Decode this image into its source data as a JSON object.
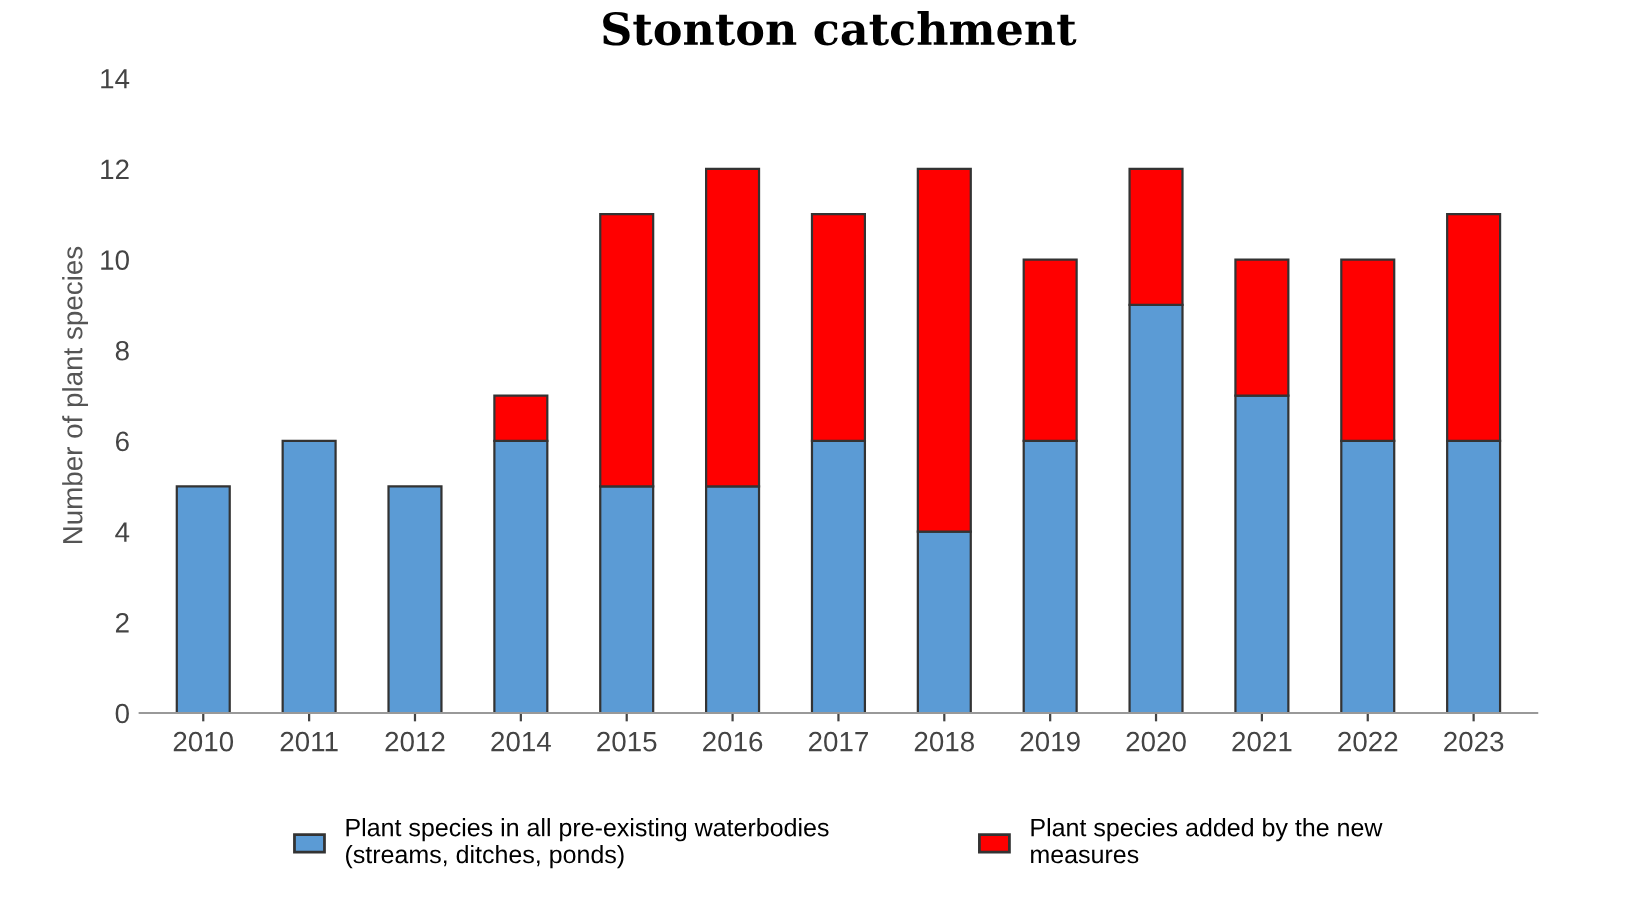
{
  "chart_data": {
    "type": "bar",
    "title": "Stonton catchment",
    "ylabel": "Number of plant species",
    "categories": [
      "2010",
      "2011",
      "2012",
      "2014",
      "2015",
      "2016",
      "2017",
      "2018",
      "2019",
      "2020",
      "2021",
      "2022",
      "2023"
    ],
    "stacked": true,
    "series": [
      {
        "name": "Plant species in all pre-existing waterbodies\n(streams, ditches, ponds)",
        "color": "#5b9bd5",
        "values": [
          5,
          6,
          5,
          6,
          5,
          5,
          6,
          4,
          6,
          9,
          7,
          6,
          6
        ]
      },
      {
        "name": "Plant species added by the new\nmeasures",
        "color": "#ff0000",
        "values": [
          0,
          0,
          0,
          1,
          6,
          7,
          5,
          8,
          4,
          3,
          3,
          4,
          5
        ]
      }
    ],
    "ylim": [
      0,
      14
    ],
    "yticks": [
      0,
      2,
      4,
      6,
      8,
      10,
      12,
      14
    ],
    "grid": false,
    "legend": "bottom"
  }
}
